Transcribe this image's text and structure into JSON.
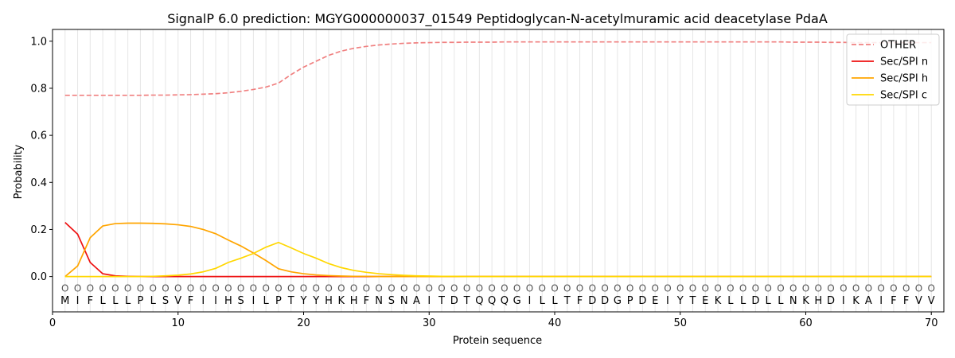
{
  "chart_data": {
    "type": "line",
    "title": "SignalP 6.0 prediction: MGYG000000037_01549 Peptidoglycan-N-acetylmuramic acid deacetylase PdaA",
    "xlabel": "Protein sequence",
    "ylabel": "Probability",
    "xlim": [
      0,
      71
    ],
    "ylim": [
      -0.15,
      1.05
    ],
    "xticks": [
      0,
      10,
      20,
      30,
      40,
      50,
      60,
      70
    ],
    "yticks": [
      0.0,
      0.2,
      0.4,
      0.6,
      0.8,
      1.0
    ],
    "xtick_labels": [
      "0",
      "10",
      "20",
      "30",
      "40",
      "50",
      "60",
      "70"
    ],
    "ytick_labels": [
      "0.0",
      "0.2",
      "0.4",
      "0.6",
      "0.8",
      "1.0"
    ],
    "grid": "vertical lines at each residue position",
    "legend_position": "top-right",
    "sequence": [
      "M",
      "I",
      "F",
      "L",
      "L",
      "L",
      "P",
      "L",
      "S",
      "V",
      "F",
      "I",
      "I",
      "H",
      "S",
      "I",
      "L",
      "P",
      "T",
      "Y",
      "Y",
      "H",
      "K",
      "H",
      "F",
      "N",
      "S",
      "N",
      "A",
      "I",
      "T",
      "D",
      "T",
      "Q",
      "Q",
      "Q",
      "G",
      "I",
      "L",
      "L",
      "T",
      "F",
      "D",
      "D",
      "G",
      "P",
      "D",
      "E",
      "I",
      "Y",
      "T",
      "E",
      "K",
      "L",
      "L",
      "D",
      "L",
      "L",
      "N",
      "K",
      "H",
      "D",
      "I",
      "K",
      "A",
      "I",
      "F",
      "F",
      "V",
      "V"
    ],
    "predicted_labels": [
      "O",
      "O",
      "O",
      "O",
      "O",
      "O",
      "O",
      "O",
      "O",
      "O",
      "O",
      "O",
      "O",
      "O",
      "O",
      "O",
      "O",
      "O",
      "O",
      "O",
      "O",
      "O",
      "O",
      "O",
      "O",
      "O",
      "O",
      "O",
      "O",
      "O",
      "O",
      "O",
      "O",
      "O",
      "O",
      "O",
      "O",
      "O",
      "O",
      "O",
      "O",
      "O",
      "O",
      "O",
      "O",
      "O",
      "O",
      "O",
      "O",
      "O",
      "O",
      "O",
      "O",
      "O",
      "O",
      "O",
      "O",
      "O",
      "O",
      "O",
      "O",
      "O",
      "O",
      "O",
      "O",
      "O",
      "O",
      "O",
      "O",
      "O"
    ],
    "series": [
      {
        "name": "OTHER",
        "color": "#f08080",
        "dash": true,
        "values": [
          0.77,
          0.77,
          0.77,
          0.77,
          0.77,
          0.77,
          0.77,
          0.771,
          0.771,
          0.772,
          0.773,
          0.775,
          0.777,
          0.781,
          0.787,
          0.795,
          0.805,
          0.822,
          0.858,
          0.89,
          0.915,
          0.94,
          0.958,
          0.97,
          0.978,
          0.984,
          0.988,
          0.991,
          0.993,
          0.994,
          0.995,
          0.995,
          0.996,
          0.996,
          0.996,
          0.997,
          0.997,
          0.997,
          0.997,
          0.997,
          0.997,
          0.997,
          0.997,
          0.997,
          0.997,
          0.997,
          0.997,
          0.997,
          0.997,
          0.997,
          0.997,
          0.997,
          0.997,
          0.997,
          0.997,
          0.997,
          0.997,
          0.997,
          0.996,
          0.996,
          0.996,
          0.995,
          0.995,
          0.994,
          0.994,
          0.994,
          0.994,
          0.994,
          0.994,
          0.994
        ]
      },
      {
        "name": "Sec/SPI n",
        "color": "#ee1111",
        "dash": false,
        "values": [
          0.23,
          0.18,
          0.06,
          0.012,
          0.003,
          0.001,
          0.0,
          0.0,
          0.0,
          0.0,
          0.0,
          0.0,
          0.0,
          0.0,
          0.0,
          0.0,
          0.0,
          0.0,
          0.0,
          0.0,
          0.0,
          0.0,
          0.0,
          0.0,
          0.0,
          0.0,
          0.0,
          0.0,
          0.0,
          0.0,
          0.0,
          0.0,
          0.0,
          0.0,
          0.0,
          0.0,
          0.0,
          0.0,
          0.0,
          0.0,
          0.0,
          0.0,
          0.0,
          0.0,
          0.0,
          0.0,
          0.0,
          0.0,
          0.0,
          0.0,
          0.0,
          0.0,
          0.0,
          0.0,
          0.0,
          0.0,
          0.0,
          0.0,
          0.0,
          0.0,
          0.0,
          0.0,
          0.0,
          0.0,
          0.0,
          0.0,
          0.0,
          0.0,
          0.0,
          0.0
        ]
      },
      {
        "name": "Sec/SPI h",
        "color": "#ffa500",
        "dash": false,
        "values": [
          0.0,
          0.045,
          0.165,
          0.215,
          0.225,
          0.227,
          0.227,
          0.226,
          0.224,
          0.22,
          0.213,
          0.2,
          0.182,
          0.155,
          0.13,
          0.1,
          0.068,
          0.033,
          0.02,
          0.012,
          0.007,
          0.004,
          0.002,
          0.001,
          0.001,
          0.0,
          0.0,
          0.0,
          0.0,
          0.0,
          0.0,
          0.0,
          0.0,
          0.0,
          0.0,
          0.0,
          0.0,
          0.0,
          0.0,
          0.0,
          0.0,
          0.0,
          0.0,
          0.0,
          0.0,
          0.0,
          0.0,
          0.0,
          0.0,
          0.0,
          0.0,
          0.0,
          0.0,
          0.0,
          0.0,
          0.0,
          0.0,
          0.0,
          0.0,
          0.0,
          0.0,
          0.0,
          0.0,
          0.0,
          0.0,
          0.0,
          0.0,
          0.0,
          0.0,
          0.0
        ]
      },
      {
        "name": "Sec/SPI c",
        "color": "#ffd700",
        "dash": false,
        "values": [
          0.0,
          0.0,
          0.0,
          0.0,
          0.0,
          0.0,
          0.0,
          0.001,
          0.003,
          0.006,
          0.011,
          0.02,
          0.035,
          0.06,
          0.078,
          0.098,
          0.125,
          0.145,
          0.122,
          0.098,
          0.078,
          0.055,
          0.038,
          0.026,
          0.018,
          0.012,
          0.008,
          0.005,
          0.003,
          0.002,
          0.001,
          0.001,
          0.0,
          0.0,
          0.0,
          0.0,
          0.0,
          0.0,
          0.0,
          0.0,
          0.0,
          0.0,
          0.0,
          0.0,
          0.0,
          0.0,
          0.0,
          0.0,
          0.0,
          0.0,
          0.0,
          0.0,
          0.0,
          0.0,
          0.0,
          0.0,
          0.0,
          0.0,
          0.0,
          0.0,
          0.0,
          0.0,
          0.0,
          0.0,
          0.0,
          0.0,
          0.0,
          0.0,
          0.0,
          0.0
        ]
      }
    ]
  }
}
